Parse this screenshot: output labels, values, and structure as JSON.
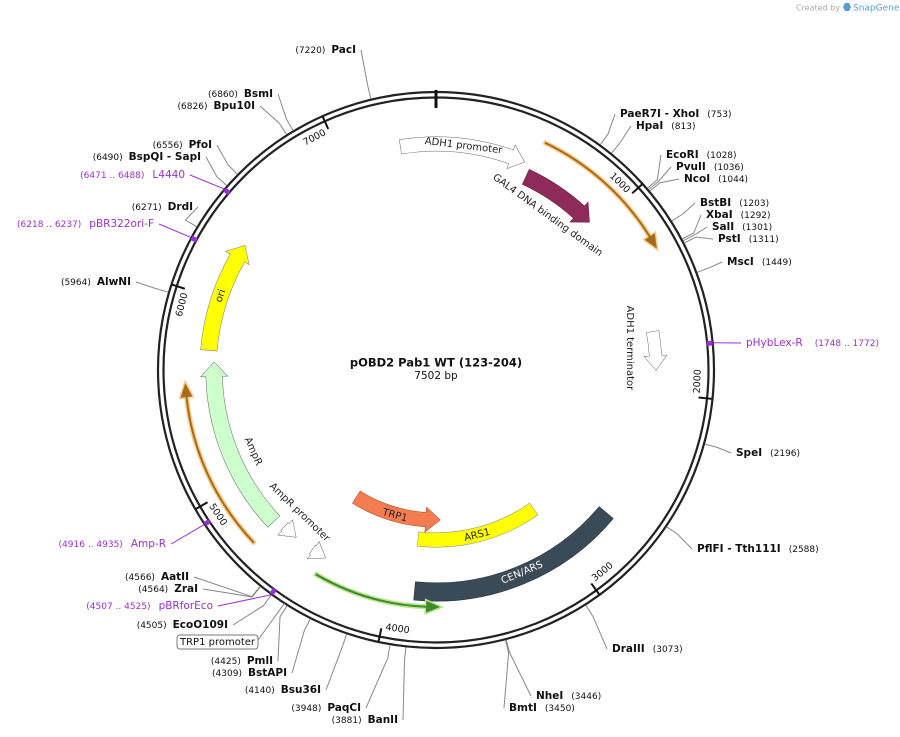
{
  "header": {
    "credit": "Created by",
    "brand": "SnapGene"
  },
  "map": {
    "title": "pOBD2 Pab1 WT (123-204)",
    "length": 7502,
    "length_unit": "bp",
    "ticks": [
      1000,
      2000,
      3000,
      4000,
      5000,
      6000,
      7000
    ],
    "features": [
      "ADH1 promoter",
      "GAL4 DNA binding domain",
      "ADH1 terminator",
      "TRP1",
      "ARS1",
      "CEN/ARS",
      "AmpR",
      "AmpR promoter",
      "ori",
      "TRP1 promoter"
    ],
    "sites": [
      {
        "name": "PacI",
        "position": "(7220)"
      },
      {
        "name": "BsmI",
        "position": "(6860)"
      },
      {
        "name": "Bpu10I",
        "position": "(6826)"
      },
      {
        "name": "PfoI",
        "position": "(6556)"
      },
      {
        "name": "BspQI - SapI",
        "position": "(6490)"
      },
      {
        "name": "DrdI",
        "position": "(6271)"
      },
      {
        "name": "AlwNI",
        "position": "(5964)"
      },
      {
        "name": "AatII",
        "position": "(4566)"
      },
      {
        "name": "ZraI",
        "position": "(4564)"
      },
      {
        "name": "EcoO109I",
        "position": "(4505)"
      },
      {
        "name": "PmlI",
        "position": "(4425)"
      },
      {
        "name": "BstAPI",
        "position": "(4309)"
      },
      {
        "name": "Bsu36I",
        "position": "(4140)"
      },
      {
        "name": "PaqCI",
        "position": "(3948)"
      },
      {
        "name": "BanII",
        "position": "(3881)"
      },
      {
        "name": "PaeR7I - XhoI",
        "position": "(753)"
      },
      {
        "name": "HpaI",
        "position": "(813)"
      },
      {
        "name": "EcoRI",
        "position": "(1028)"
      },
      {
        "name": "PvuII",
        "position": "(1036)"
      },
      {
        "name": "NcoI",
        "position": "(1044)"
      },
      {
        "name": "BstBI",
        "position": "(1203)"
      },
      {
        "name": "XbaI",
        "position": "(1292)"
      },
      {
        "name": "SalI",
        "position": "(1301)"
      },
      {
        "name": "PstI",
        "position": "(1311)"
      },
      {
        "name": "MscI",
        "position": "(1449)"
      },
      {
        "name": "SpeI",
        "position": "(2196)"
      },
      {
        "name": "PflFI - Tth111I",
        "position": "(2588)"
      },
      {
        "name": "DraIII",
        "position": "(3073)"
      },
      {
        "name": "NheI",
        "position": "(3446)"
      },
      {
        "name": "BmtI",
        "position": "(3450)"
      }
    ],
    "primers": [
      {
        "name": "L4440",
        "range": "(6471 .. 6488)"
      },
      {
        "name": "pBR322ori-F",
        "range": "(6218 .. 6237)"
      },
      {
        "name": "pHybLex-R",
        "range": "(1748 .. 1772)"
      },
      {
        "name": "Amp-R",
        "range": "(4916 .. 4935)"
      },
      {
        "name": "pBRforEco",
        "range": "(4507 .. 4525)"
      }
    ]
  }
}
